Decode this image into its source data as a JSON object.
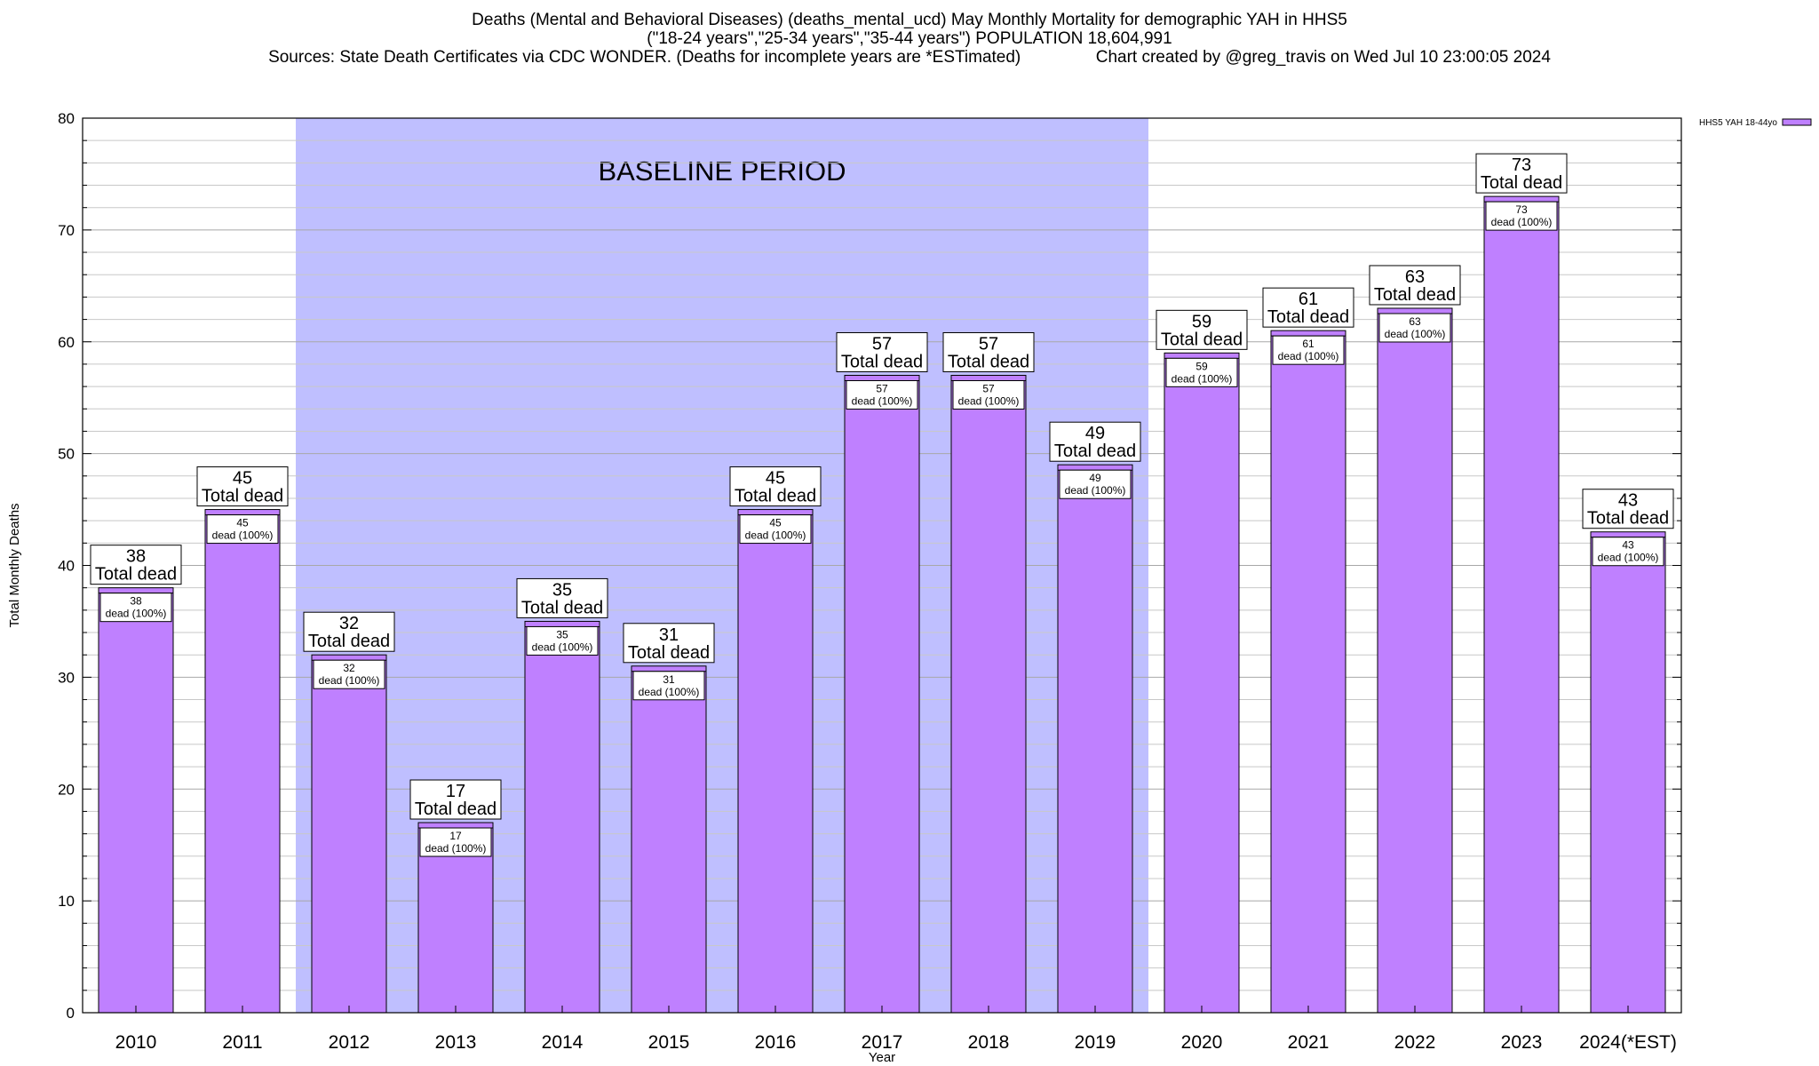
{
  "chart_data": {
    "type": "bar",
    "title_lines": [
      "Deaths (Mental and Behavioral Diseases) (deaths_mental_ucd) May Monthly Mortality for demographic YAH in HHS5",
      "(\"18-24 years\",\"25-34 years\",\"35-44 years\") POPULATION 18,604,991",
      "Sources: State Death Certificates via CDC WONDER. (Deaths for incomplete years are *ESTimated)                Chart created by @greg_travis on Wed Jul 10 23:00:05 2024"
    ],
    "xlabel": "Year",
    "ylabel": "Total Monthly Deaths",
    "ylim": [
      0,
      80
    ],
    "yticks": [
      0,
      10,
      20,
      30,
      40,
      50,
      60,
      70,
      80
    ],
    "grid": true,
    "legend_position": "top-right",
    "categories": [
      "2010",
      "2011",
      "2012",
      "2013",
      "2014",
      "2015",
      "2016",
      "2017",
      "2018",
      "2019",
      "2020",
      "2021",
      "2022",
      "2023",
      "2024(*EST)"
    ],
    "series": [
      {
        "name": "HHS5 YAH 18-44yo",
        "color": "#bf80ff",
        "values": [
          38,
          45,
          32,
          17,
          35,
          31,
          45,
          57,
          57,
          49,
          59,
          61,
          63,
          73,
          43
        ]
      }
    ],
    "total_label": "Total dead",
    "inner_label": "dead (100%)",
    "baseline": {
      "label": "BASELINE PERIOD",
      "from": "2012",
      "to": "2019",
      "color": "#bfbfff"
    }
  }
}
